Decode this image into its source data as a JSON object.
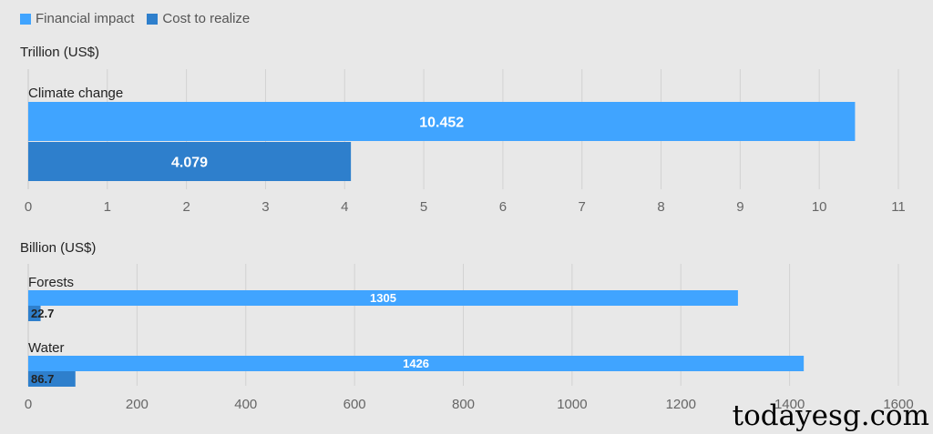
{
  "legend": [
    {
      "name": "Financial impact",
      "color": "#40a4ff"
    },
    {
      "name": "Cost to realize",
      "color": "#2e7fcc"
    }
  ],
  "watermark": "todayesg.com",
  "chart_data": [
    {
      "type": "bar",
      "orientation": "horizontal",
      "title": "Trillion (US$)",
      "categories": [
        "Climate change"
      ],
      "series": [
        {
          "name": "Financial impact",
          "values": [
            10.452
          ]
        },
        {
          "name": "Cost to realize",
          "values": [
            4.079
          ]
        }
      ],
      "xlim": [
        0,
        11
      ],
      "xticks": [
        0,
        1,
        2,
        3,
        4,
        5,
        6,
        7,
        8,
        9,
        10,
        11
      ],
      "grid": true,
      "legend": "top-left"
    },
    {
      "type": "bar",
      "orientation": "horizontal",
      "title": "Billion (US$)",
      "categories": [
        "Forests",
        "Water"
      ],
      "series": [
        {
          "name": "Financial impact",
          "values": [
            1305,
            1426
          ]
        },
        {
          "name": "Cost to realize",
          "values": [
            22.7,
            86.7
          ]
        }
      ],
      "xlim": [
        0,
        1600
      ],
      "xticks": [
        0,
        200,
        400,
        600,
        800,
        1000,
        1200,
        1400,
        1600
      ],
      "grid": true,
      "legend": "top-left"
    }
  ]
}
